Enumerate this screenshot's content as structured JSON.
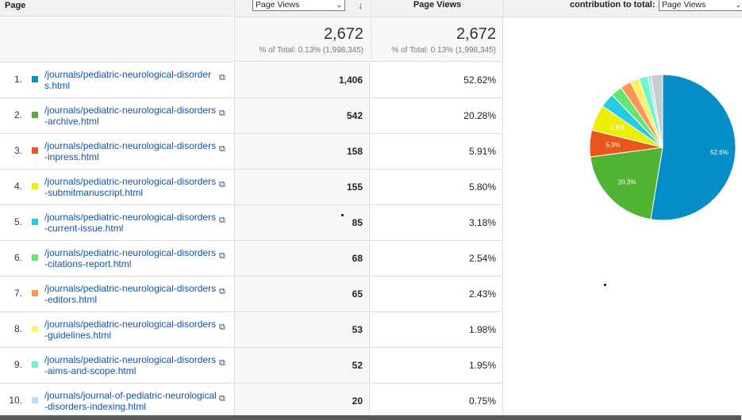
{
  "header": {
    "page_label": "Page",
    "metric_select": "Page Views",
    "metric_label": "Page Views",
    "contribution_label": "contribution to total:",
    "contribution_select": "Page Views"
  },
  "totals": [
    {
      "value": "2,672",
      "note": "% of Total: 0.13% (1,998,345)"
    },
    {
      "value": "2,672",
      "note": "% of Total: 0.13% (1,998,345)"
    }
  ],
  "rows": [
    {
      "num": "1.",
      "color": "#058dc7",
      "page": "/journals/pediatric-neurological-disorders.html",
      "views": "1,406",
      "pct": "52.62%"
    },
    {
      "num": "2.",
      "color": "#50b432",
      "page": "/journals/pediatric-neurological-disorders-archive.html",
      "views": "542",
      "pct": "20.28%"
    },
    {
      "num": "3.",
      "color": "#ed561b",
      "page": "/journals/pediatric-neurological-disorders-inpress.html",
      "views": "158",
      "pct": "5.91%"
    },
    {
      "num": "4.",
      "color": "#edef00",
      "page": "/journals/pediatric-neurological-disorders-submitmanuscript.html",
      "views": "155",
      "pct": "5.80%"
    },
    {
      "num": "5.",
      "color": "#24cbe5",
      "page": "/journals/pediatric-neurological-disorders-current-issue.html",
      "views": "85",
      "pct": "3.18%"
    },
    {
      "num": "6.",
      "color": "#64e572",
      "page": "/journals/pediatric-neurological-disorders-citations-report.html",
      "views": "68",
      "pct": "2.54%"
    },
    {
      "num": "7.",
      "color": "#ff9655",
      "page": "/journals/pediatric-neurological-disorders-editors.html",
      "views": "65",
      "pct": "2.43%"
    },
    {
      "num": "8.",
      "color": "#fff263",
      "page": "/journals/pediatric-neurological-disorders-guidelines.html",
      "views": "53",
      "pct": "1.98%"
    },
    {
      "num": "9.",
      "color": "#6af9c4",
      "page": "/journals/pediatric-neurological-disorders-aims-and-scope.html",
      "views": "52",
      "pct": "1.95%"
    },
    {
      "num": "10.",
      "color": "#b2deff",
      "page": "/journals/journal-of-pediatric-neurological-disorders-indexing.html",
      "views": "20",
      "pct": "0.75%"
    }
  ],
  "chart_data": {
    "type": "pie",
    "slices": [
      {
        "value": 52.62,
        "color": "#058dc7",
        "label": "52.6%"
      },
      {
        "value": 20.28,
        "color": "#50b432",
        "label": "20.3%"
      },
      {
        "value": 5.91,
        "color": "#ed561b",
        "label": "5.9%"
      },
      {
        "value": 5.8,
        "color": "#edef00",
        "label": "5.8%"
      },
      {
        "value": 3.18,
        "color": "#24cbe5",
        "label": ""
      },
      {
        "value": 2.54,
        "color": "#64e572",
        "label": ""
      },
      {
        "value": 2.43,
        "color": "#ff9655",
        "label": ""
      },
      {
        "value": 1.98,
        "color": "#fff263",
        "label": ""
      },
      {
        "value": 1.95,
        "color": "#6af9c4",
        "label": ""
      },
      {
        "value": 0.75,
        "color": "#b2deff",
        "label": ""
      },
      {
        "value": 2.56,
        "color": "#cccccc",
        "label": ""
      }
    ]
  }
}
